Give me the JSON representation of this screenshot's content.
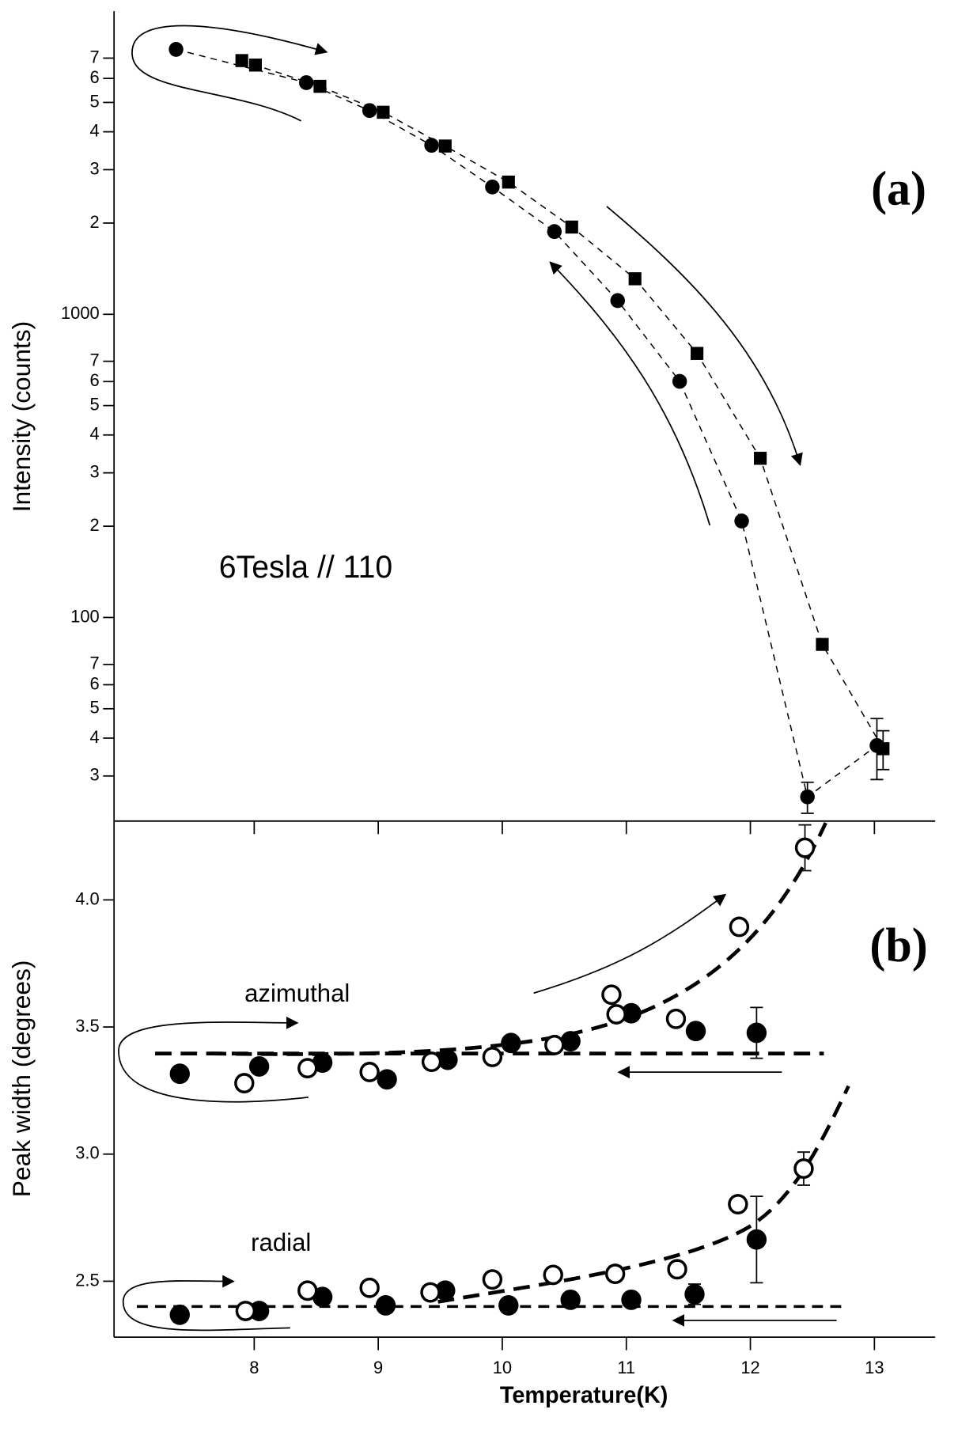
{
  "chart_data": [
    {
      "type": "scatter",
      "log_y": true,
      "ylabel": "Intensity (counts)",
      "annotations": [
        "(a)",
        "6Tesla // 110"
      ],
      "xlim": [
        6.87,
        13.49
      ],
      "ylim": [
        21.3,
        10000
      ],
      "yticks": [
        {
          "value": 7000,
          "label": "7"
        },
        {
          "value": 6000,
          "label": "6"
        },
        {
          "value": 5000,
          "label": "5"
        },
        {
          "value": 4000,
          "label": "4"
        },
        {
          "value": 3000,
          "label": "3"
        },
        {
          "value": 2000,
          "label": "2"
        },
        1000,
        {
          "value": 700,
          "label": "7"
        },
        {
          "value": 600,
          "label": "6"
        },
        {
          "value": 500,
          "label": "5"
        },
        {
          "value": 400,
          "label": "4"
        },
        {
          "value": 300,
          "label": "3"
        },
        {
          "value": 200,
          "label": "2"
        },
        100,
        {
          "value": 70,
          "label": "7"
        },
        {
          "value": 60,
          "label": "6"
        },
        {
          "value": 50,
          "label": "5"
        },
        {
          "value": 40,
          "label": "4"
        },
        {
          "value": 30,
          "label": "3"
        }
      ],
      "series": [
        {
          "marker": "circle",
          "filled": true,
          "line_style": "dashed",
          "color": "#000000",
          "x": [
            7.37,
            8.42,
            8.93,
            9.43,
            9.92,
            10.42,
            10.93,
            11.43,
            11.93,
            12.46,
            13.02
          ],
          "values": [
            7480,
            5810,
            4700,
            3610,
            2630,
            1875,
            1110,
            601,
            208,
            25.6,
            37.8
          ],
          "errors": [
            null,
            null,
            null,
            null,
            null,
            null,
            null,
            null,
            null,
            3,
            8.6
          ]
        },
        {
          "marker": "square",
          "filled": true,
          "line_style": "dashed",
          "color": "#000000",
          "x": [
            7.9,
            8.01,
            8.53,
            9.04,
            9.54,
            10.05,
            10.56,
            11.07,
            11.57,
            12.08,
            12.58,
            13.07
          ],
          "values": [
            6870,
            6640,
            5650,
            4640,
            3590,
            2730,
            1940,
            1310,
            743,
            335,
            81.5,
            36.9
          ],
          "errors": [
            null,
            null,
            null,
            null,
            null,
            null,
            null,
            null,
            null,
            null,
            null,
            5.4
          ]
        }
      ]
    },
    {
      "type": "scatter",
      "log_y": false,
      "ylabel": "Peak width (degrees)",
      "xlabel": "Temperature(K)",
      "annotations": [
        "(b)",
        "azimuthal",
        "radial"
      ],
      "xlim": [
        6.87,
        13.49
      ],
      "ylim": [
        2.28,
        4.31
      ],
      "xticks": [
        8,
        9,
        10,
        11,
        12,
        13
      ],
      "yticks": [
        2.5,
        {
          "value": 3,
          "label": "3.0"
        },
        3.5,
        {
          "value": 4,
          "label": "4.0"
        }
      ],
      "series": [
        {
          "marker": "circle",
          "filled": true,
          "color": "#000000",
          "x": [
            7.4,
            8.04,
            8.55,
            9.07,
            9.56,
            10.07,
            10.55,
            11.04,
            11.56,
            12.05
          ],
          "values": [
            3.316,
            3.345,
            3.36,
            3.294,
            3.371,
            3.437,
            3.444,
            3.554,
            3.484,
            3.477
          ],
          "errors": [
            null,
            null,
            null,
            null,
            null,
            null,
            null,
            null,
            null,
            0.1
          ]
        },
        {
          "marker": "circle",
          "filled": false,
          "color": "#000000",
          "x": [
            7.92,
            8.43,
            8.93,
            9.43,
            9.92,
            10.42,
            10.88,
            10.92,
            11.4,
            11.91,
            12.44
          ],
          "values": [
            3.279,
            3.338,
            3.323,
            3.363,
            3.382,
            3.429,
            3.627,
            3.55,
            3.532,
            3.894,
            4.205
          ],
          "errors": [
            null,
            null,
            null,
            null,
            null,
            null,
            null,
            null,
            null,
            0.03,
            0.09
          ]
        },
        {
          "marker": "circle",
          "filled": true,
          "color": "#000000",
          "x": [
            7.4,
            8.04,
            8.55,
            9.06,
            9.54,
            10.05,
            10.55,
            11.04,
            11.55,
            12.05
          ],
          "values": [
            2.368,
            2.383,
            2.438,
            2.405,
            2.463,
            2.405,
            2.427,
            2.427,
            2.449,
            2.664
          ],
          "errors": [
            null,
            null,
            null,
            null,
            null,
            null,
            null,
            null,
            0.04,
            0.17
          ]
        },
        {
          "marker": "circle",
          "filled": false,
          "color": "#000000",
          "x": [
            7.93,
            8.43,
            8.93,
            9.42,
            9.92,
            10.41,
            10.91,
            11.41,
            11.9,
            12.43
          ],
          "values": [
            2.383,
            2.463,
            2.474,
            2.456,
            2.507,
            2.525,
            2.529,
            2.547,
            2.803,
            2.943
          ],
          "errors": [
            null,
            null,
            null,
            null,
            null,
            null,
            null,
            null,
            null,
            0.065
          ]
        }
      ]
    }
  ]
}
